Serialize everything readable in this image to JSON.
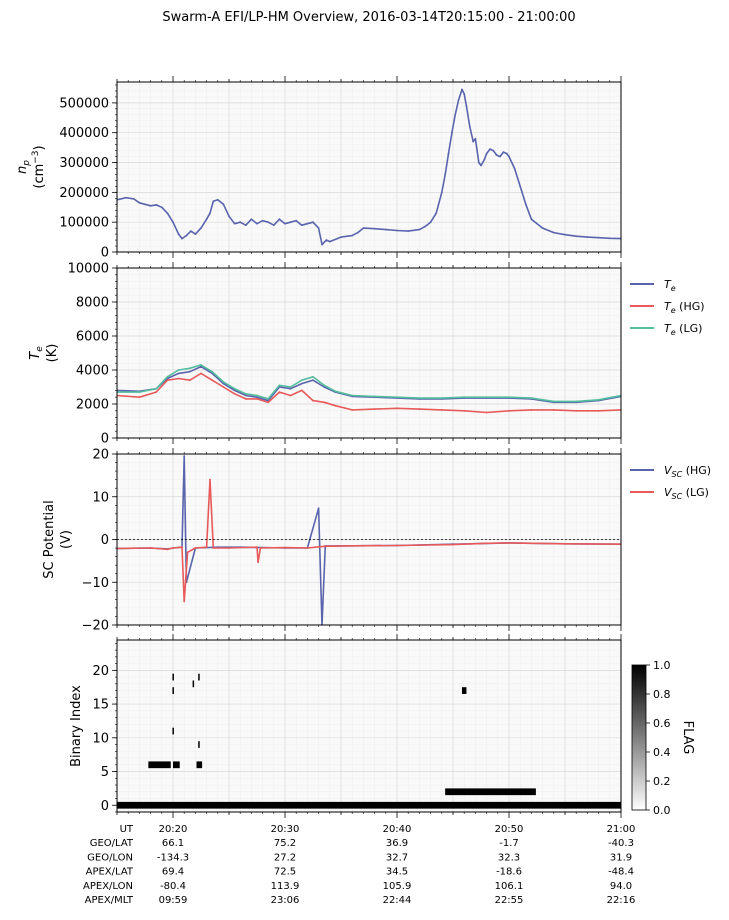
{
  "title": "Swarm-A EFI/LP-HM Overview, 2016-03-14T20:15:00 - 21:00:00",
  "colors": {
    "blue": "#5a64ad",
    "red": "#e8595a",
    "green": "#54bd9e",
    "grid_major": "#d9d9d9",
    "grid_minor": "#efefef",
    "panel_bg": "#f9f9f9"
  },
  "chart_data": [
    {
      "type": "line",
      "panel": "density",
      "ylabel": [
        "n_p",
        "(cm^-3)"
      ],
      "ylabel_parts": {
        "sym": "n",
        "sub": "p",
        "unit_pre": "(cm",
        "unit_sup": "−3",
        "unit_post": ")"
      },
      "xlim": [
        15,
        60
      ],
      "ylim": [
        0,
        570000
      ],
      "yticks": [
        0,
        100000,
        200000,
        300000,
        400000,
        500000
      ],
      "ytick_labels": [
        "0",
        "100000",
        "200000",
        "300000",
        "400000",
        "500000"
      ],
      "series": [
        {
          "color": "#5a64ad",
          "x": [
            15.0,
            15.8,
            16.5,
            17.0,
            17.5,
            18.0,
            18.5,
            19.0,
            19.5,
            20.0,
            20.5,
            20.8,
            21.2,
            21.6,
            22.0,
            22.5,
            23.0,
            23.3,
            23.6,
            24.0,
            24.5,
            25.0,
            25.5,
            26.0,
            26.5,
            27.0,
            27.5,
            28.0,
            28.5,
            29.0,
            29.5,
            30.0,
            30.5,
            31.0,
            31.5,
            32.0,
            32.5,
            33.0,
            33.3,
            33.7,
            34.0,
            35.0,
            36.0,
            36.5,
            37.0,
            38.0,
            39.0,
            40.0,
            41.0,
            42.0,
            42.5,
            43.0,
            43.5,
            44.0,
            44.3,
            44.6,
            44.9,
            45.2,
            45.5,
            45.8,
            46.0,
            46.2,
            46.5,
            46.8,
            47.0,
            47.3,
            47.5,
            47.8,
            48.0,
            48.3,
            48.6,
            48.9,
            49.2,
            49.5,
            49.8,
            50.0,
            50.5,
            51.0,
            51.5,
            52.0,
            53.0,
            54.0,
            55.0,
            56.0,
            57.0,
            58.0,
            59.0,
            60.0
          ],
          "y": [
            175000,
            182000,
            178000,
            165000,
            160000,
            155000,
            158000,
            150000,
            130000,
            100000,
            60000,
            45000,
            55000,
            70000,
            60000,
            80000,
            110000,
            130000,
            170000,
            175000,
            160000,
            120000,
            95000,
            100000,
            90000,
            110000,
            95000,
            105000,
            100000,
            90000,
            110000,
            95000,
            100000,
            105000,
            90000,
            95000,
            100000,
            80000,
            25000,
            40000,
            35000,
            50000,
            55000,
            65000,
            80000,
            78000,
            75000,
            72000,
            70000,
            75000,
            85000,
            100000,
            130000,
            200000,
            260000,
            330000,
            400000,
            460000,
            510000,
            545000,
            530000,
            490000,
            420000,
            370000,
            380000,
            300000,
            290000,
            310000,
            330000,
            345000,
            340000,
            325000,
            320000,
            335000,
            330000,
            320000,
            280000,
            220000,
            160000,
            110000,
            80000,
            65000,
            58000,
            53000,
            50000,
            48000,
            46000,
            45000
          ]
        }
      ]
    },
    {
      "type": "line",
      "panel": "temperature",
      "ylabel": [
        "T_e",
        "(K)"
      ],
      "ylabel_parts": {
        "sym": "T",
        "sub": "e",
        "unit": "(K)"
      },
      "xlim": [
        15,
        60
      ],
      "ylim": [
        0,
        10000
      ],
      "yticks": [
        0,
        2000,
        4000,
        6000,
        8000,
        10000
      ],
      "ytick_labels": [
        "0",
        "2000",
        "4000",
        "6000",
        "8000",
        "10000"
      ],
      "legend": {
        "placement": "outside-right",
        "items": [
          {
            "sym": "T",
            "sub": "e",
            "suffix": "",
            "color": "#5a64ad"
          },
          {
            "sym": "T",
            "sub": "e",
            "suffix": " (HG)",
            "color": "#e8595a"
          },
          {
            "sym": "T",
            "sub": "e",
            "suffix": " (LG)",
            "color": "#54bd9e"
          }
        ]
      },
      "series": [
        {
          "name_key": 0,
          "color": "#5a64ad",
          "x": [
            15,
            17,
            18.5,
            19.5,
            20.5,
            21.5,
            22.5,
            23.5,
            24.5,
            25.5,
            26.5,
            27.5,
            28.5,
            29.5,
            30.5,
            31.5,
            32.5,
            33.5,
            34.5,
            36,
            38,
            40,
            42,
            44,
            46,
            48,
            50,
            52,
            54,
            56,
            58,
            60
          ],
          "y": [
            2800,
            2750,
            2900,
            3500,
            3800,
            3900,
            4200,
            3800,
            3200,
            2800,
            2500,
            2400,
            2200,
            3000,
            2900,
            3200,
            3400,
            3000,
            2700,
            2450,
            2400,
            2350,
            2300,
            2300,
            2350,
            2350,
            2350,
            2300,
            2100,
            2100,
            2200,
            2450
          ]
        },
        {
          "name_key": 1,
          "color": "#e8595a",
          "x": [
            15,
            17,
            18.5,
            19.5,
            20.5,
            21.5,
            22.5,
            23.5,
            24.5,
            25.5,
            26.5,
            27.5,
            28.5,
            29.5,
            30.5,
            31.5,
            32.5,
            33.5,
            34.5,
            36,
            38,
            40,
            42,
            44,
            46,
            48,
            50,
            52,
            54,
            56,
            58,
            60
          ],
          "y": [
            2500,
            2400,
            2700,
            3400,
            3500,
            3400,
            3800,
            3400,
            3000,
            2600,
            2300,
            2300,
            2100,
            2700,
            2500,
            2800,
            2200,
            2100,
            1900,
            1650,
            1700,
            1750,
            1700,
            1650,
            1600,
            1500,
            1600,
            1650,
            1650,
            1600,
            1600,
            1650
          ]
        },
        {
          "name_key": 2,
          "color": "#54bd9e",
          "x": [
            15,
            17,
            18.5,
            19.5,
            20.5,
            21.5,
            22.5,
            23.5,
            24.5,
            25.5,
            26.5,
            27.5,
            28.5,
            29.5,
            30.5,
            31.5,
            32.5,
            33.5,
            34.5,
            36,
            38,
            40,
            42,
            44,
            46,
            48,
            50,
            52,
            54,
            56,
            58,
            60
          ],
          "y": [
            2700,
            2700,
            2900,
            3600,
            4000,
            4100,
            4300,
            3900,
            3300,
            2900,
            2600,
            2500,
            2300,
            3100,
            3000,
            3400,
            3600,
            3100,
            2750,
            2500,
            2450,
            2400,
            2350,
            2350,
            2400,
            2400,
            2400,
            2350,
            2150,
            2150,
            2250,
            2500
          ]
        }
      ]
    },
    {
      "type": "line",
      "panel": "potential",
      "ylabel": [
        "SC Potential",
        "(V)"
      ],
      "xlim": [
        15,
        60
      ],
      "ylim": [
        -20,
        20
      ],
      "yticks": [
        -20,
        -10,
        0,
        10,
        20
      ],
      "ytick_labels": [
        "−20",
        "−10",
        "0",
        "10",
        "20"
      ],
      "legend": {
        "placement": "outside-right",
        "items": [
          {
            "sym": "V",
            "sub": "SC",
            "suffix": " (HG)",
            "color": "#5a64ad"
          },
          {
            "sym": "V",
            "sub": "SC",
            "suffix": " (LG)",
            "color": "#e8595a"
          }
        ]
      },
      "series": [
        {
          "name_key": 0,
          "color": "#5a64ad",
          "x": [
            15,
            18,
            19.6,
            20,
            20.8,
            21.0,
            21.2,
            22,
            24,
            26,
            28,
            30,
            32,
            33.0,
            33.3,
            33.6,
            35,
            40,
            45,
            50,
            55,
            60
          ],
          "y": [
            -2.1,
            -2.0,
            -2.2,
            -2.0,
            -1.8,
            19.5,
            -10.0,
            -2.0,
            -1.8,
            -1.8,
            -1.9,
            -2.0,
            -2.0,
            7.3,
            -20.0,
            -1.5,
            -1.5,
            -1.4,
            -1.1,
            -0.8,
            -1.0,
            -1.1
          ]
        },
        {
          "name_key": 1,
          "color": "#e8595a",
          "x": [
            15,
            18,
            19.5,
            20,
            20.8,
            21.0,
            21.3,
            22,
            23.0,
            23.3,
            23.6,
            25,
            27.5,
            27.6,
            27.8,
            30,
            32,
            33.5,
            35,
            40,
            45,
            48,
            50,
            55,
            60
          ],
          "y": [
            -2.1,
            -2.0,
            -2.3,
            -2.0,
            -1.8,
            -14.5,
            -3.0,
            -2.0,
            -1.8,
            14.0,
            -2.0,
            -2.0,
            -1.8,
            -5.3,
            -2.0,
            -1.9,
            -2.0,
            -1.6,
            -1.5,
            -1.4,
            -1.2,
            -0.9,
            -0.8,
            -1.0,
            -1.1
          ]
        }
      ]
    },
    {
      "type": "heatmap",
      "panel": "flags",
      "ylabel": [
        "Binary Index"
      ],
      "xlim": [
        15,
        60
      ],
      "ylim": [
        -1,
        24.5
      ],
      "yticks": [
        0,
        5,
        10,
        15,
        20
      ],
      "ytick_labels": [
        "0",
        "5",
        "10",
        "15",
        "20"
      ],
      "colorbar": {
        "label": "FLAG",
        "range": [
          0,
          1
        ],
        "ticks": [
          0,
          0.2,
          0.4,
          0.6,
          0.8,
          1.0
        ],
        "tick_labels": [
          "0.0",
          "0.2",
          "0.4",
          "0.6",
          "0.8",
          "1.0"
        ]
      },
      "cells": [
        {
          "x0": 15.0,
          "x1": 60.0,
          "y": 0,
          "v": 1
        },
        {
          "x0": 17.8,
          "x1": 19.8,
          "y": 6,
          "v": 1
        },
        {
          "x0": 20.0,
          "x1": 20.6,
          "y": 6,
          "v": 1
        },
        {
          "x0": 22.1,
          "x1": 22.6,
          "y": 6,
          "v": 1
        },
        {
          "x0": 44.3,
          "x1": 52.4,
          "y": 2,
          "v": 1
        },
        {
          "x0": 45.8,
          "x1": 46.2,
          "y": 17,
          "v": 1
        },
        {
          "x0": 19.95,
          "x1": 20.05,
          "y": 11,
          "v": 1
        },
        {
          "x0": 19.95,
          "x1": 20.05,
          "y": 17,
          "v": 1
        },
        {
          "x0": 19.95,
          "x1": 20.05,
          "y": 19,
          "v": 1
        },
        {
          "x0": 21.75,
          "x1": 21.85,
          "y": 18,
          "v": 1
        },
        {
          "x0": 22.25,
          "x1": 22.35,
          "y": 9,
          "v": 1
        },
        {
          "x0": 22.25,
          "x1": 22.35,
          "y": 19,
          "v": 1
        }
      ]
    }
  ],
  "xaxis_table": {
    "row_labels": [
      "UT",
      "GEO/LAT",
      "GEO/LON",
      "APEX/LAT",
      "APEX/LON",
      "APEX/MLT"
    ],
    "tick_minutes": [
      20,
      30,
      40,
      50,
      60
    ],
    "columns": [
      [
        "20:20",
        "66.1",
        "-134.3",
        "69.4",
        "-80.4",
        "09:59"
      ],
      [
        "20:30",
        "75.2",
        "27.2",
        "72.5",
        "113.9",
        "23:06"
      ],
      [
        "20:40",
        "36.9",
        "32.7",
        "34.5",
        "105.9",
        "22:44"
      ],
      [
        "20:50",
        "-1.7",
        "32.3",
        "-18.6",
        "106.1",
        "22:55"
      ],
      [
        "21:00",
        "-40.3",
        "31.9",
        "-48.4",
        "94.0",
        "22:16"
      ]
    ]
  }
}
